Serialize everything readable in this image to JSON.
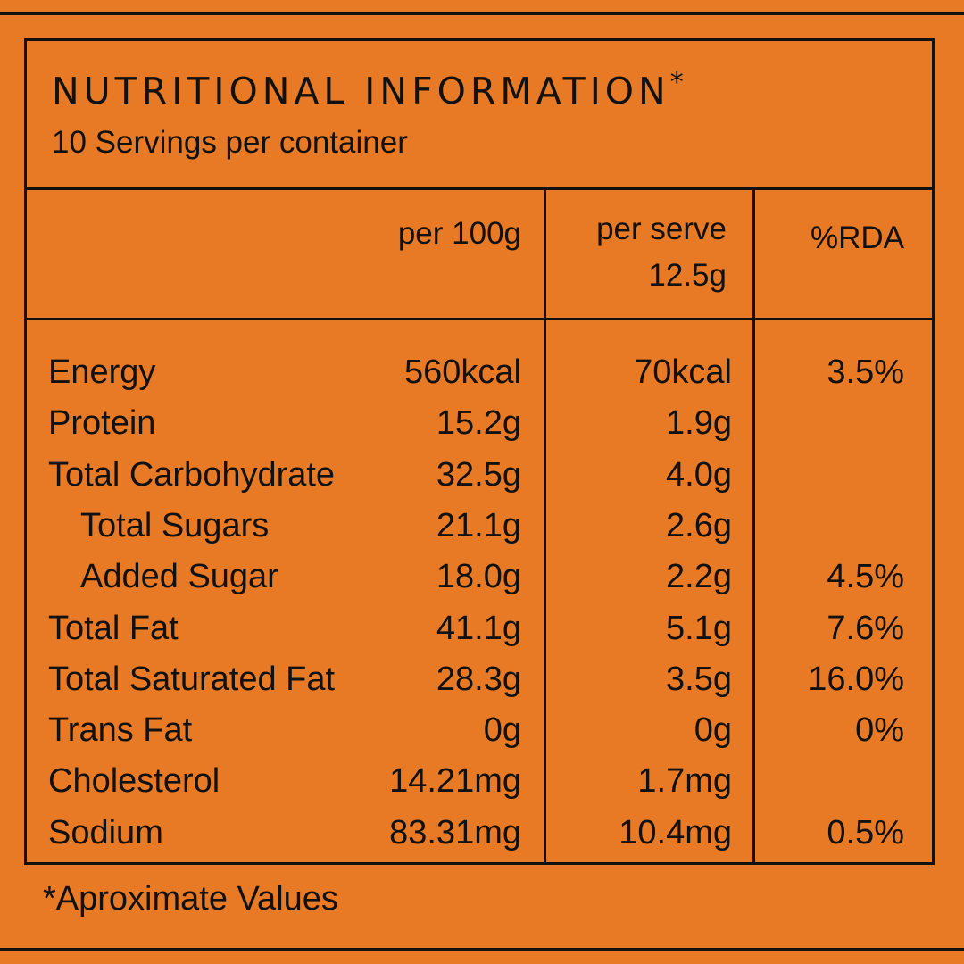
{
  "title": "NUTRITIONAL INFORMATION",
  "title_mark": "*",
  "servings": "10 Servings per container",
  "columns": {
    "per100": "per 100g",
    "per_serve_line1": "per serve",
    "per_serve_line2": "12.5g",
    "rda": "%RDA"
  },
  "rows": [
    {
      "name": "Energy",
      "per100": "560kcal",
      "serve": "70kcal",
      "rda": "3.5%"
    },
    {
      "name": "Protein",
      "per100": "15.2g",
      "serve": "1.9g",
      "rda": ""
    },
    {
      "name": "Total Carbohydrate",
      "per100": "32.5g",
      "serve": "4.0g",
      "rda": ""
    },
    {
      "name": "Total Sugars",
      "per100": "21.1g",
      "serve": "2.6g",
      "rda": ""
    },
    {
      "name": "Added Sugar",
      "per100": "18.0g",
      "serve": "2.2g",
      "rda": "4.5%"
    },
    {
      "name": "Total Fat",
      "per100": "41.1g",
      "serve": "5.1g",
      "rda": "7.6%"
    },
    {
      "name": "Total Saturated Fat",
      "per100": "28.3g",
      "serve": "3.5g",
      "rda": "16.0%"
    },
    {
      "name": "Trans Fat",
      "per100": "0g",
      "serve": "0g",
      "rda": "0%"
    },
    {
      "name": "Cholesterol",
      "per100": "14.21mg",
      "serve": "1.7mg",
      "rda": ""
    },
    {
      "name": "Sodium",
      "per100": "83.31mg",
      "serve": "10.4mg",
      "rda": "0.5%"
    }
  ],
  "footnote": "*Aproximate Values",
  "colors": {
    "background": "#e87a26",
    "ink": "#111111"
  }
}
